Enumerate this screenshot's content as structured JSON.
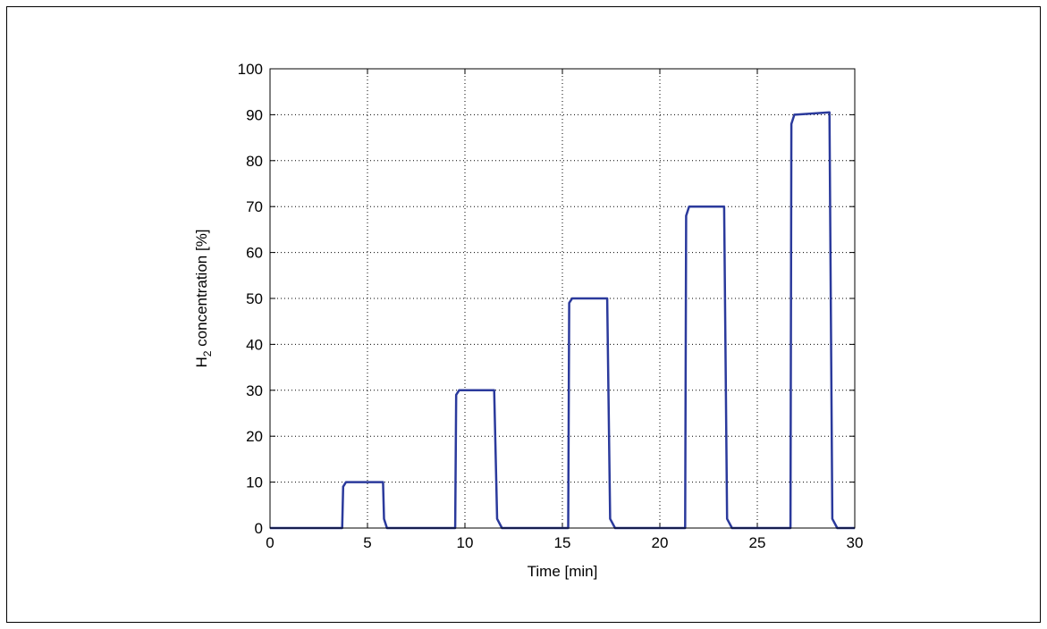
{
  "chart_data": {
    "type": "line",
    "xlabel": "Time [min]",
    "ylabel": {
      "main": "H",
      "sub": "2",
      "rest": " concentration [%]"
    },
    "xlim": [
      0,
      30
    ],
    "ylim": [
      0,
      100
    ],
    "x_ticks": [
      0,
      5,
      10,
      15,
      20,
      25,
      30
    ],
    "y_ticks": [
      0,
      10,
      20,
      30,
      40,
      50,
      60,
      70,
      80,
      90,
      100
    ],
    "grid": true,
    "series_color": "#2b3a9c",
    "series": [
      {
        "x": [
          0,
          3.7,
          3.75,
          3.9,
          5.8,
          5.85,
          6.0,
          9.5,
          9.55,
          9.7,
          11.5,
          11.65,
          11.9,
          15.3,
          15.35,
          15.5,
          17.3,
          17.45,
          17.7,
          21.3,
          21.35,
          21.5,
          23.3,
          23.45,
          23.7,
          26.7,
          26.75,
          26.9,
          28.7,
          28.85,
          29.1,
          30
        ],
        "y": [
          0,
          0,
          9,
          10,
          10,
          2,
          0,
          0,
          29,
          30,
          30,
          2,
          0,
          0,
          49,
          50,
          50,
          2,
          0,
          0,
          68,
          70,
          70,
          2,
          0,
          0,
          88,
          90,
          90.5,
          2,
          0,
          0
        ]
      }
    ]
  }
}
